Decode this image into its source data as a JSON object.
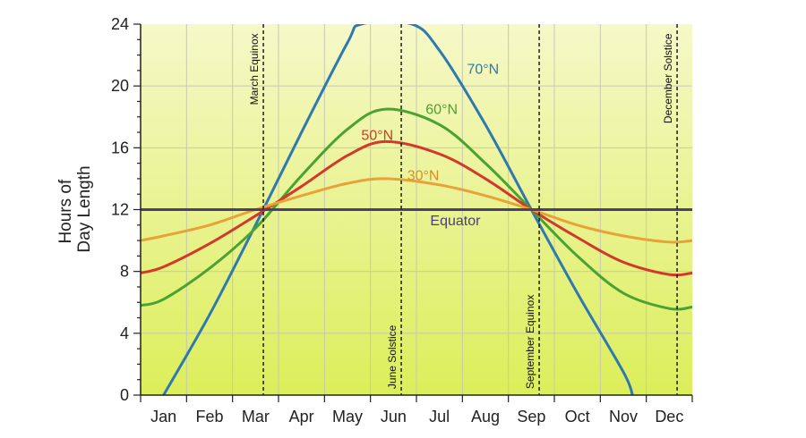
{
  "chart_data": {
    "type": "line",
    "title": "",
    "ylabel_lines": [
      "Hours of",
      "Day Length"
    ],
    "xlabel": "",
    "ylim": [
      0,
      24
    ],
    "xlim": [
      0,
      12
    ],
    "y_ticks": [
      0,
      4,
      8,
      12,
      16,
      20,
      24
    ],
    "months": [
      "Jan",
      "Feb",
      "Mar",
      "Apr",
      "May",
      "Jun",
      "Jul",
      "Aug",
      "Sep",
      "Oct",
      "Nov",
      "Dec"
    ],
    "grid": true,
    "background": {
      "top": "#f6f8c8",
      "bottom": "#dcee5a"
    },
    "x_note": "x values are month positions: 0 = start of Jan, 12 = end of Dec",
    "series": [
      {
        "name": "70°N",
        "color": "#2f79b0",
        "label_color": "#2f79b0",
        "label_at": [
          7.1,
          20.8
        ],
        "points": [
          [
            0.5,
            0
          ],
          [
            1.5,
            5.2
          ],
          [
            2.5,
            11.0
          ],
          [
            3.5,
            17.0
          ],
          [
            4.5,
            22.8
          ],
          [
            4.8,
            24
          ],
          [
            5.9,
            24
          ],
          [
            6.5,
            22.3
          ],
          [
            7.5,
            17.5
          ],
          [
            8.5,
            12.0
          ],
          [
            9.5,
            6.6
          ],
          [
            10.5,
            1.5
          ],
          [
            10.7,
            0
          ]
        ]
      },
      {
        "name": "60°N",
        "color": "#4aa232",
        "label_color": "#4aa232",
        "label_at": [
          6.2,
          18.2
        ],
        "points": [
          [
            0,
            5.8
          ],
          [
            0.5,
            6.2
          ],
          [
            1.5,
            8.2
          ],
          [
            2.5,
            10.8
          ],
          [
            3.5,
            14.2
          ],
          [
            4.5,
            17.2
          ],
          [
            5.33,
            18.5
          ],
          [
            6.5,
            17.5
          ],
          [
            7.5,
            15.0
          ],
          [
            8.5,
            12.0
          ],
          [
            9.5,
            9.0
          ],
          [
            10.5,
            6.6
          ],
          [
            11.5,
            5.6
          ],
          [
            12,
            5.7
          ]
        ]
      },
      {
        "name": "50°N",
        "color": "#d2392a",
        "label_color": "#d2392a",
        "label_at": [
          4.8,
          16.5
        ],
        "points": [
          [
            0,
            7.9
          ],
          [
            0.5,
            8.3
          ],
          [
            1.5,
            9.8
          ],
          [
            2.5,
            11.6
          ],
          [
            3.5,
            13.5
          ],
          [
            4.5,
            15.5
          ],
          [
            5.33,
            16.4
          ],
          [
            6.5,
            15.6
          ],
          [
            7.5,
            14.0
          ],
          [
            8.5,
            12.0
          ],
          [
            9.5,
            10.2
          ],
          [
            10.5,
            8.6
          ],
          [
            11.5,
            7.8
          ],
          [
            12,
            7.9
          ]
        ]
      },
      {
        "name": "30°N",
        "color": "#e7a23a",
        "label_color": "#d58e2a",
        "label_at": [
          5.8,
          13.9
        ],
        "points": [
          [
            0,
            10.0
          ],
          [
            0.5,
            10.3
          ],
          [
            1.5,
            11.0
          ],
          [
            2.5,
            12.0
          ],
          [
            3.5,
            12.9
          ],
          [
            4.5,
            13.7
          ],
          [
            5.33,
            14.0
          ],
          [
            6.5,
            13.6
          ],
          [
            7.5,
            12.9
          ],
          [
            8.5,
            12.0
          ],
          [
            9.5,
            11.0
          ],
          [
            10.5,
            10.3
          ],
          [
            11.5,
            9.9
          ],
          [
            12,
            10.0
          ]
        ]
      },
      {
        "name": "Equator",
        "color": "#4b3f7a",
        "label_color": "#4b3f7a",
        "label_at": [
          6.3,
          11.0
        ],
        "points": [
          [
            0,
            12
          ],
          [
            12,
            12
          ]
        ]
      }
    ],
    "events": [
      {
        "name": "March Equinox",
        "x": 2.67,
        "label_y": 23.4,
        "anchor": "end"
      },
      {
        "name": "June Solstice",
        "x": 5.67,
        "label_y": 0.4,
        "anchor": "start"
      },
      {
        "name": "September Equinox",
        "x": 8.67,
        "label_y": 0.4,
        "anchor": "start"
      },
      {
        "name": "December Solstice",
        "x": 11.67,
        "label_y": 23.4,
        "anchor": "end"
      }
    ]
  }
}
